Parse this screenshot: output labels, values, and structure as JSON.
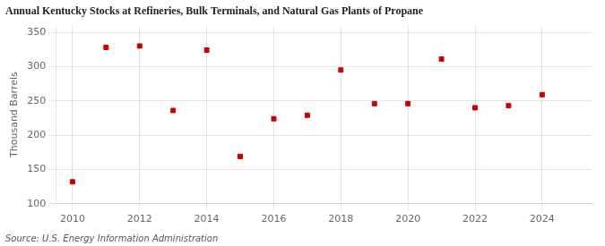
{
  "chart_data": {
    "type": "scatter",
    "title": "Annual Kentucky Stocks at Refineries, Bulk Terminals, and Natural Gas Plants of Propane",
    "ylabel": "Thousand Barrels",
    "source": "Source: U.S. Energy Information Administration",
    "x": [
      2010,
      2011,
      2012,
      2013,
      2014,
      2015,
      2016,
      2017,
      2018,
      2019,
      2020,
      2021,
      2022,
      2023,
      2024
    ],
    "values": [
      132,
      328,
      330,
      236,
      324,
      169,
      224,
      229,
      295,
      246,
      246,
      311,
      240,
      243,
      259
    ],
    "color": "#cc0000",
    "marker": "square",
    "xlim": [
      2009.5,
      2025.5
    ],
    "xticks": [
      2010,
      2012,
      2014,
      2016,
      2018,
      2020,
      2022,
      2024
    ],
    "ylim": [
      100,
      360
    ],
    "yticks": [
      100,
      150,
      200,
      250,
      300,
      350
    ],
    "grid": true
  }
}
